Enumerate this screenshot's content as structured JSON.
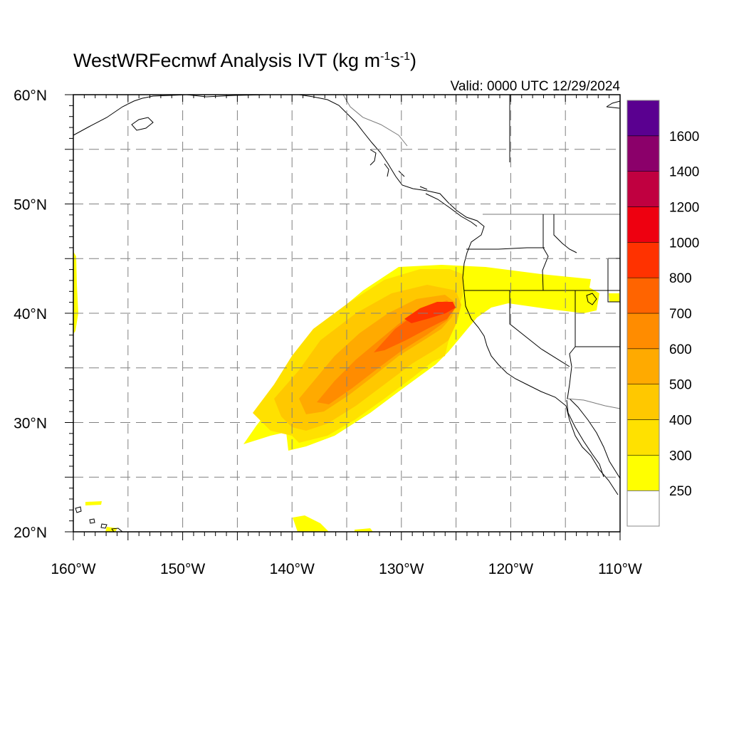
{
  "title": {
    "main": "WestWRFecmwf Analysis IVT (kg m",
    "sup1": "-1",
    "mid": "s",
    "sup2": "-1",
    "close": ")"
  },
  "valid_label": "Valid: 0000 UTC 12/29/2024",
  "map": {
    "lon_range": [
      -160,
      -110
    ],
    "lat_range": [
      20,
      60
    ],
    "grid_lines": "dashed",
    "lon_ticks": [
      {
        "lon": -160,
        "label": "160°W"
      },
      {
        "lon": -150,
        "label": "150°W"
      },
      {
        "lon": -140,
        "label": "140°W"
      },
      {
        "lon": -130,
        "label": "130°W"
      },
      {
        "lon": -120,
        "label": "120°W"
      },
      {
        "lon": -110,
        "label": "110°W"
      }
    ],
    "lat_ticks": [
      {
        "lat": 60,
        "label": "60°N"
      },
      {
        "lat": 50,
        "label": "50°N"
      },
      {
        "lat": 40,
        "label": "40°N"
      },
      {
        "lat": 30,
        "label": "30°N"
      },
      {
        "lat": 20,
        "label": "20°N"
      }
    ]
  },
  "colorbar": {
    "levels": [
      "250",
      "300",
      "400",
      "500",
      "600",
      "700",
      "800",
      "1000",
      "1200",
      "1400",
      "1600"
    ],
    "colors": [
      "#ffffff",
      "#ffff00",
      "#ffe100",
      "#ffc800",
      "#ffaa00",
      "#ff8c00",
      "#ff6400",
      "#ff3200",
      "#ee0010",
      "#c00040",
      "#8b006a",
      "#5a0090"
    ]
  }
}
